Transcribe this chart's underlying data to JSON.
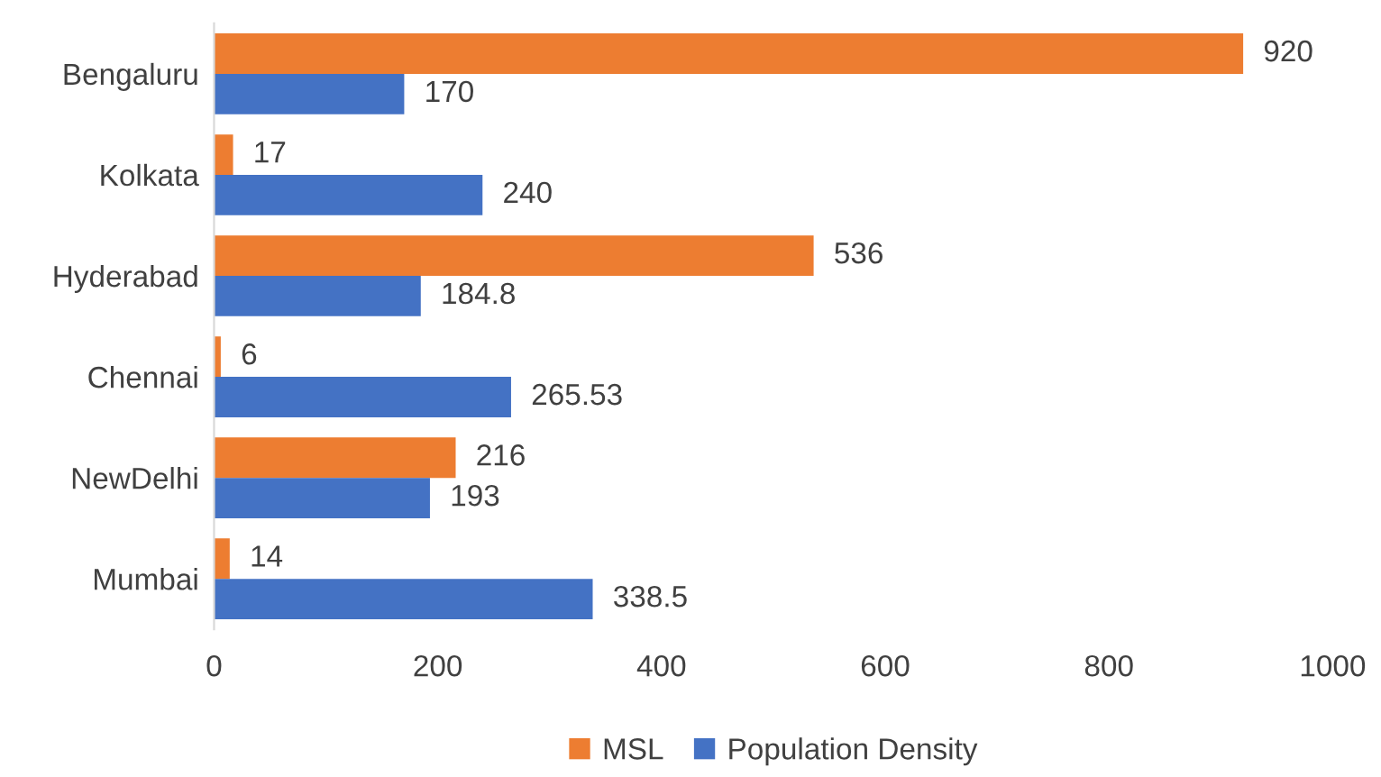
{
  "chart_data": {
    "type": "bar",
    "orientation": "horizontal",
    "categories": [
      "Bengaluru",
      "Kolkata",
      "Hyderabad",
      "Chennai",
      "NewDelhi",
      "Mumbai"
    ],
    "series": [
      {
        "name": "MSL",
        "color": "#ed7d31",
        "values": [
          920,
          17,
          536,
          6,
          216,
          14
        ]
      },
      {
        "name": "Population Density",
        "color": "#4472c4",
        "values": [
          170,
          240,
          184.8,
          265.53,
          193,
          338.5
        ]
      }
    ],
    "xlim": [
      0,
      1000
    ],
    "xticks": [
      0,
      200,
      400,
      600,
      800,
      1000
    ],
    "grid": false,
    "legend": "bottom",
    "data_labels": true
  }
}
